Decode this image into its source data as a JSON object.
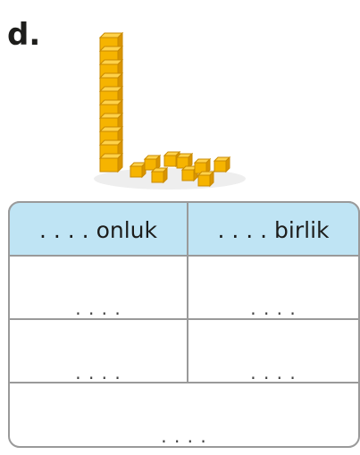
{
  "label": "d.",
  "table": {
    "header": [
      ". . . . onluk",
      ". . . . birlik"
    ],
    "rows": [
      [
        ". . . .",
        ". . . ."
      ],
      [
        ". . . .",
        ". . . ."
      ],
      [
        ". . . ."
      ]
    ]
  }
}
